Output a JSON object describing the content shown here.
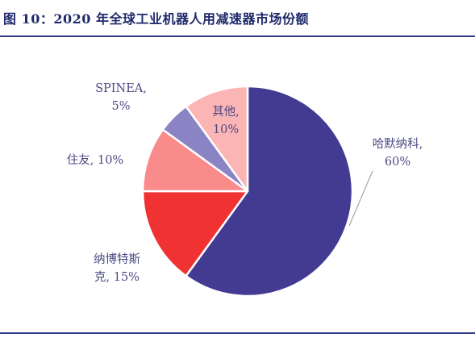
{
  "figure": {
    "title": "图 10：2020 年全球工业机器人用减速器市场份额"
  },
  "chart_data": {
    "type": "pie",
    "slices": [
      {
        "name": "哈默纳科",
        "value": 60,
        "value_label": "60%",
        "color": "#433a91",
        "label_lines": [
          "哈默纳科,",
          "60%"
        ]
      },
      {
        "name": "纳博特斯克",
        "value": 15,
        "value_label": "15%",
        "color": "#f03232",
        "label_lines": [
          "纳博特斯",
          "克, 15%"
        ]
      },
      {
        "name": "住友",
        "value": 10,
        "value_label": "10%",
        "color": "#f98b8b",
        "label_lines": [
          "住友, 10%"
        ]
      },
      {
        "name": "SPINEA",
        "value": 5,
        "value_label": "5%",
        "color": "#8b84c4",
        "label_lines": [
          "SPINEA,",
          "5%"
        ]
      },
      {
        "name": "其他",
        "value": 10,
        "value_label": "10%",
        "color": "#fbb5b5",
        "label_lines": [
          "其他,",
          "10%"
        ]
      }
    ],
    "start_angle_deg": 0,
    "direction": "clockwise"
  }
}
